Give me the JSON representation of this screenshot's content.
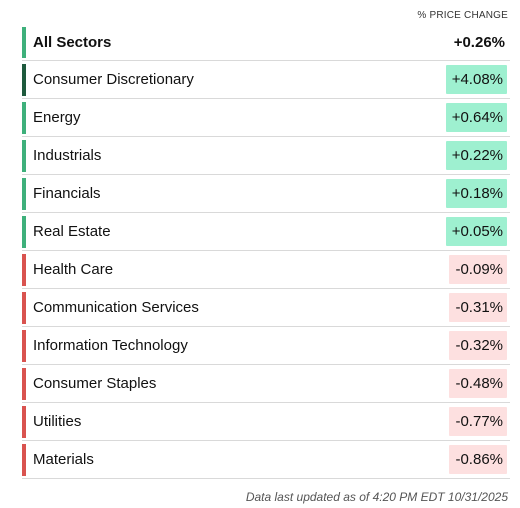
{
  "header": {
    "column_label": "% PRICE CHANGE"
  },
  "colors": {
    "up_bar": "#3eb07b",
    "up_bar_strong": "#1e5a3d",
    "down_bar": "#d9534f",
    "up_fill": "#9ef0d0",
    "down_fill": "#fde0e0"
  },
  "total": {
    "name": "All Sectors",
    "change": "+0.26%",
    "direction": "up"
  },
  "sectors": [
    {
      "name": "Consumer Discretionary",
      "change": "+4.08%",
      "direction": "up",
      "strong": true
    },
    {
      "name": "Energy",
      "change": "+0.64%",
      "direction": "up"
    },
    {
      "name": "Industrials",
      "change": "+0.22%",
      "direction": "up"
    },
    {
      "name": "Financials",
      "change": "+0.18%",
      "direction": "up"
    },
    {
      "name": "Real Estate",
      "change": "+0.05%",
      "direction": "up"
    },
    {
      "name": "Health Care",
      "change": "-0.09%",
      "direction": "down"
    },
    {
      "name": "Communication Services",
      "change": "-0.31%",
      "direction": "down"
    },
    {
      "name": "Information Technology",
      "change": "-0.32%",
      "direction": "down"
    },
    {
      "name": "Consumer Staples",
      "change": "-0.48%",
      "direction": "down"
    },
    {
      "name": "Utilities",
      "change": "-0.77%",
      "direction": "down"
    },
    {
      "name": "Materials",
      "change": "-0.86%",
      "direction": "down"
    }
  ],
  "footer": {
    "text": "Data last updated as of 4:20 PM EDT 10/31/2025"
  }
}
